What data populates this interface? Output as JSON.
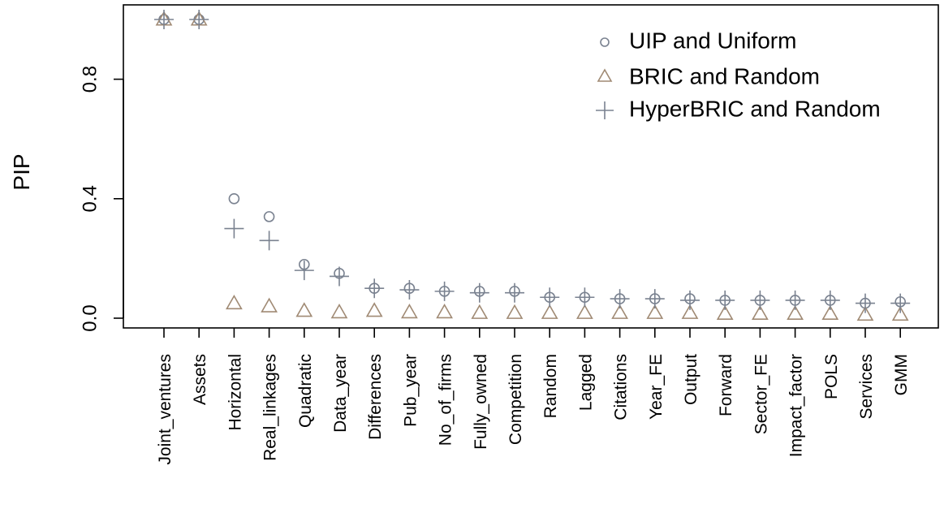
{
  "chart_data": {
    "type": "scatter",
    "ylabel": "PIP",
    "xlabel": "",
    "ylim": [
      0,
      1
    ],
    "yticks": [
      "0.0",
      "0.4",
      "0.8"
    ],
    "categories": [
      "Joint_ventures",
      "Assets",
      "Horizontal",
      "Real_linkages",
      "Quadratic",
      "Data_year",
      "Differences",
      "Pub_year",
      "No_of_firms",
      "Fully_owned",
      "Competition",
      "Random",
      "Lagged",
      "Citations",
      "Year_FE",
      "Output",
      "Forward",
      "Sector_FE",
      "Impact_factor",
      "POLS",
      "Services",
      "GMM"
    ],
    "series": [
      {
        "name": "UIP and Uniform",
        "marker": "circle",
        "color": "#7a8290",
        "values": [
          1.0,
          1.0,
          0.4,
          0.34,
          0.18,
          0.15,
          0.1,
          0.1,
          0.09,
          0.09,
          0.09,
          0.07,
          0.07,
          0.065,
          0.065,
          0.065,
          0.06,
          0.06,
          0.06,
          0.06,
          0.05,
          0.055
        ]
      },
      {
        "name": "BRIC and Random",
        "marker": "triangle",
        "color": "#a08a74",
        "values": [
          1.0,
          1.0,
          0.05,
          0.04,
          0.025,
          0.02,
          0.025,
          0.02,
          0.02,
          0.018,
          0.018,
          0.018,
          0.018,
          0.018,
          0.018,
          0.018,
          0.015,
          0.015,
          0.015,
          0.015,
          0.012,
          0.012
        ]
      },
      {
        "name": "HyperBRIC and Random",
        "marker": "plus",
        "color": "#7a8290",
        "values": [
          1.0,
          1.0,
          0.3,
          0.26,
          0.16,
          0.14,
          0.1,
          0.095,
          0.09,
          0.085,
          0.085,
          0.07,
          0.07,
          0.065,
          0.065,
          0.06,
          0.06,
          0.06,
          0.06,
          0.06,
          0.05,
          0.05
        ]
      }
    ],
    "legend_position": "top-right",
    "grid": false
  }
}
